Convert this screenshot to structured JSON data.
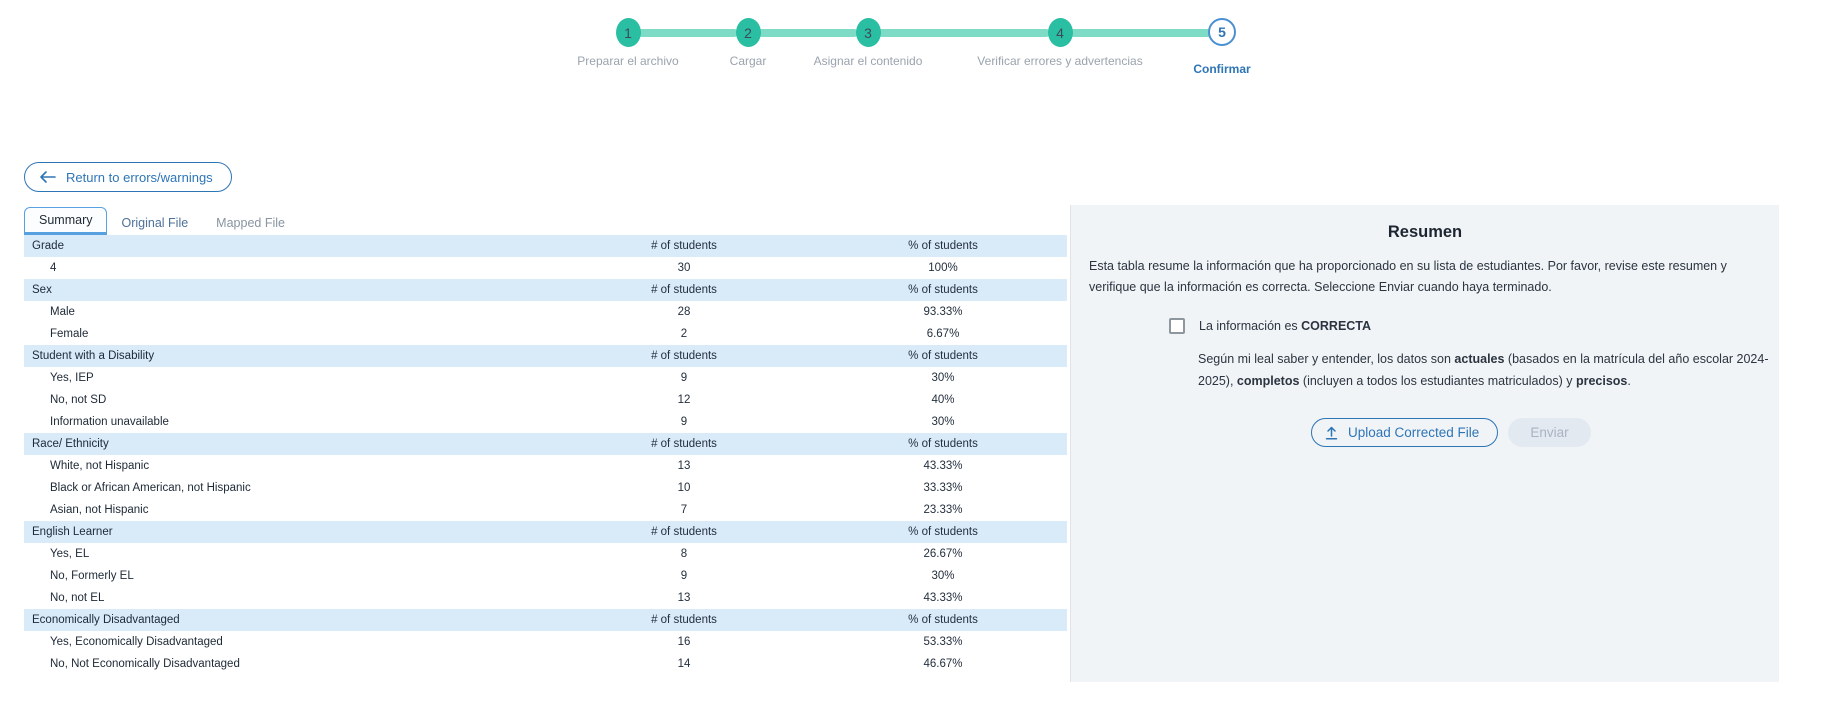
{
  "colors": {
    "teal": "#2abfa3",
    "teal_light": "#7edcc6",
    "blue_accent": "#2e75b6",
    "table_header_blue": "#d9eaf8",
    "panel_bg": "#f1f4f7"
  },
  "stepper": {
    "steps": [
      {
        "number": "1",
        "label": "Preparar el archivo",
        "state": "complete"
      },
      {
        "number": "2",
        "label": "Cargar",
        "state": "complete"
      },
      {
        "number": "3",
        "label": "Asignar el contenido",
        "state": "complete"
      },
      {
        "number": "4",
        "label": "Verificar errores y advertencias",
        "state": "complete"
      },
      {
        "number": "5",
        "label": "Confirmar",
        "state": "active"
      }
    ]
  },
  "toolbar": {
    "return_label": "Return to errors/warnings"
  },
  "tabs": [
    {
      "label": "Summary",
      "active": true
    },
    {
      "label": "Original File",
      "active": false
    },
    {
      "label": "Mapped File",
      "active": false
    }
  ],
  "table": {
    "col_count": "# of students",
    "col_percent": "% of students",
    "sections": [
      {
        "name": "Grade",
        "rows": [
          {
            "label": "4",
            "count": "30",
            "percent": "100%"
          }
        ]
      },
      {
        "name": "Sex",
        "rows": [
          {
            "label": "Male",
            "count": "28",
            "percent": "93.33%"
          },
          {
            "label": "Female",
            "count": "2",
            "percent": "6.67%"
          }
        ]
      },
      {
        "name": "Student with a Disability",
        "rows": [
          {
            "label": "Yes, IEP",
            "count": "9",
            "percent": "30%"
          },
          {
            "label": "No, not SD",
            "count": "12",
            "percent": "40%"
          },
          {
            "label": "Information unavailable",
            "count": "9",
            "percent": "30%"
          }
        ]
      },
      {
        "name": "Race/ Ethnicity",
        "rows": [
          {
            "label": "White, not Hispanic",
            "count": "13",
            "percent": "43.33%"
          },
          {
            "label": "Black or African American, not Hispanic",
            "count": "10",
            "percent": "33.33%"
          },
          {
            "label": "Asian, not Hispanic",
            "count": "7",
            "percent": "23.33%"
          }
        ]
      },
      {
        "name": "English Learner",
        "rows": [
          {
            "label": "Yes, EL",
            "count": "8",
            "percent": "26.67%"
          },
          {
            "label": "No, Formerly EL",
            "count": "9",
            "percent": "30%"
          },
          {
            "label": "No, not EL",
            "count": "13",
            "percent": "43.33%"
          }
        ]
      },
      {
        "name": "Economically Disadvantaged",
        "rows": [
          {
            "label": "Yes, Economically Disadvantaged",
            "count": "16",
            "percent": "53.33%"
          },
          {
            "label": "No, Not Economically Disadvantaged",
            "count": "14",
            "percent": "46.67%"
          }
        ]
      }
    ]
  },
  "panel": {
    "title": "Resumen",
    "intro": "Esta tabla resume la información que ha proporcionado en su lista de estudiantes. Por favor, revise este resumen y verifique que la información es correcta. Seleccione Enviar cuando haya terminado.",
    "checkbox_prefix": "La información es ",
    "checkbox_bold": "CORRECTA",
    "attestation": {
      "p1": "Según mi leal saber y entender, los datos son ",
      "b1": "actuales",
      "p2": " (basados en la matrícula del año escolar 2024-2025), ",
      "b2": "completos",
      "p3": " (incluyen a todos los estudiantes matriculados) y ",
      "b3": "precisos",
      "p4": "."
    },
    "upload_label": "Upload Corrected File",
    "submit_label": "Enviar"
  }
}
